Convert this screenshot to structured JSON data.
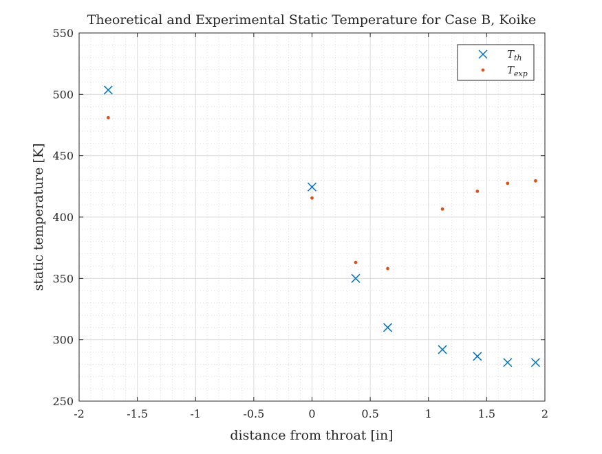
{
  "chart_data": {
    "type": "scatter",
    "title": "Theoretical and Experimental Static Temperature for Case B, Koike",
    "xlabel": "distance from throat [in]",
    "ylabel": "static temperature [K]",
    "xlim": [
      -2,
      2
    ],
    "ylim": [
      250,
      550
    ],
    "xticks": [
      -2,
      -1.5,
      -1,
      -0.5,
      0,
      0.5,
      1,
      1.5,
      2
    ],
    "xtick_labels": [
      "-2",
      "-1.5",
      "-1",
      "-0.5",
      "0",
      "0.5",
      "1",
      "1.5",
      "2"
    ],
    "yticks": [
      250,
      300,
      350,
      400,
      450,
      500,
      550
    ],
    "ytick_labels": [
      "250",
      "300",
      "350",
      "400",
      "450",
      "500",
      "550"
    ],
    "grid": true,
    "minor_grid": true,
    "legend_position": "top-right",
    "series": [
      {
        "name": "T_th",
        "legend_main": "T",
        "legend_sub": "th",
        "marker": "x",
        "color": "#0072BD",
        "x": [
          -1.75,
          0,
          0.375,
          0.65,
          1.12,
          1.42,
          1.68,
          1.92
        ],
        "y": [
          503.5,
          424.5,
          350,
          310,
          292,
          286.5,
          281.5,
          281.5
        ]
      },
      {
        "name": "T_exp",
        "legend_main": "T",
        "legend_sub": "exp",
        "marker": "dot",
        "color": "#D95319",
        "x": [
          -1.75,
          0,
          0.375,
          0.65,
          1.12,
          1.42,
          1.68,
          1.92
        ],
        "y": [
          481,
          415.5,
          363,
          358,
          406.5,
          421,
          427.5,
          429.5
        ]
      }
    ]
  }
}
